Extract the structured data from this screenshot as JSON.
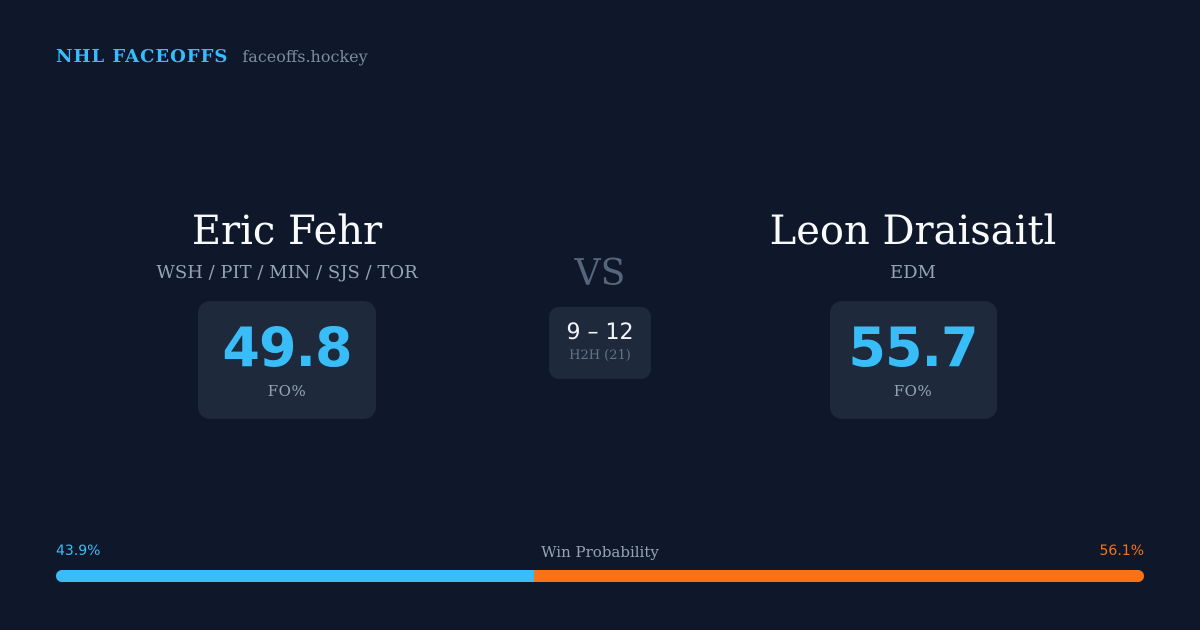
{
  "header": {
    "brand": "NHL FACEOFFS",
    "domain": "faceoffs.hockey"
  },
  "player_left": {
    "name": "Eric Fehr",
    "teams": "WSH / PIT / MIN / SJS / TOR",
    "fo_pct": "49.8",
    "fo_label": "FO%"
  },
  "player_right": {
    "name": "Leon Draisaitl",
    "teams": "EDM",
    "fo_pct": "55.7",
    "fo_label": "FO%"
  },
  "matchup": {
    "vs": "VS",
    "h2h_score": "9 – 12",
    "h2h_label": "H2H (21)"
  },
  "win_probability": {
    "title": "Win Probability",
    "left_text": "43.9%",
    "right_text": "56.1%",
    "left_value": 43.9,
    "right_value": 56.1
  },
  "colors": {
    "background": "#0f172a",
    "card": "#1e293b",
    "accent_blue": "#38bdf8",
    "accent_orange": "#f97316"
  }
}
